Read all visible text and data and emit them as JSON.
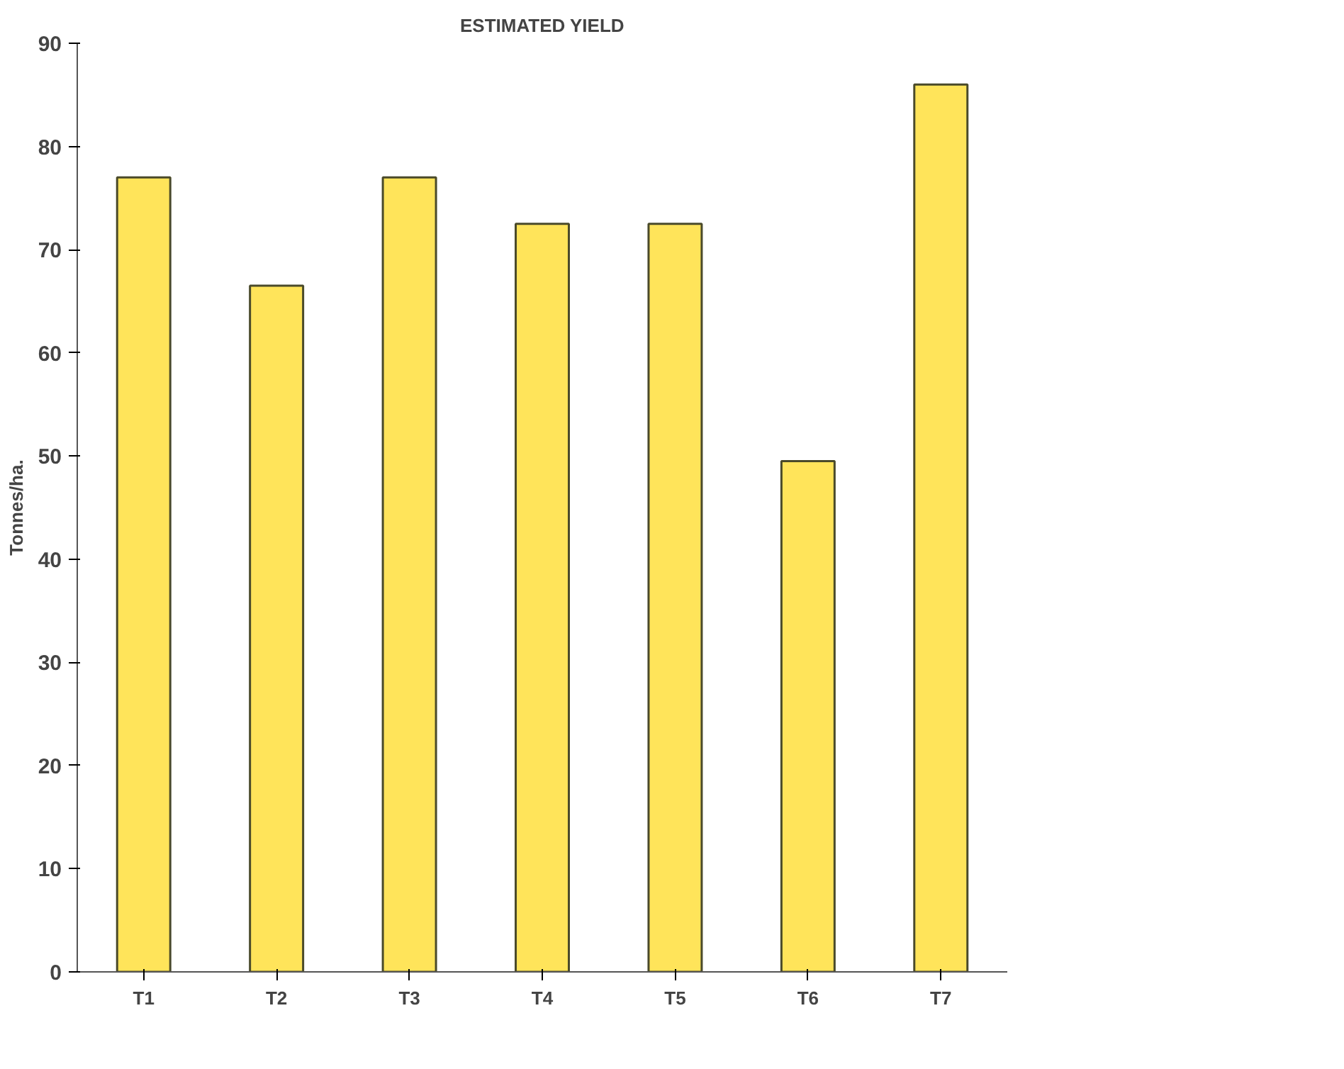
{
  "chart_data": {
    "type": "bar",
    "title": "ESTIMATED YIELD",
    "ylabel": "Tonnes/ha.",
    "categories": [
      "T1",
      "T2",
      "T3",
      "T4",
      "T5",
      "T6",
      "T7"
    ],
    "values": [
      77,
      66.5,
      77,
      72.5,
      72.5,
      49.5,
      86
    ],
    "color": "#ffe45a",
    "ylim": [
      0,
      90
    ],
    "yticks": [
      0,
      10,
      20,
      30,
      40,
      50,
      60,
      70,
      80,
      90
    ],
    "grid": false
  }
}
